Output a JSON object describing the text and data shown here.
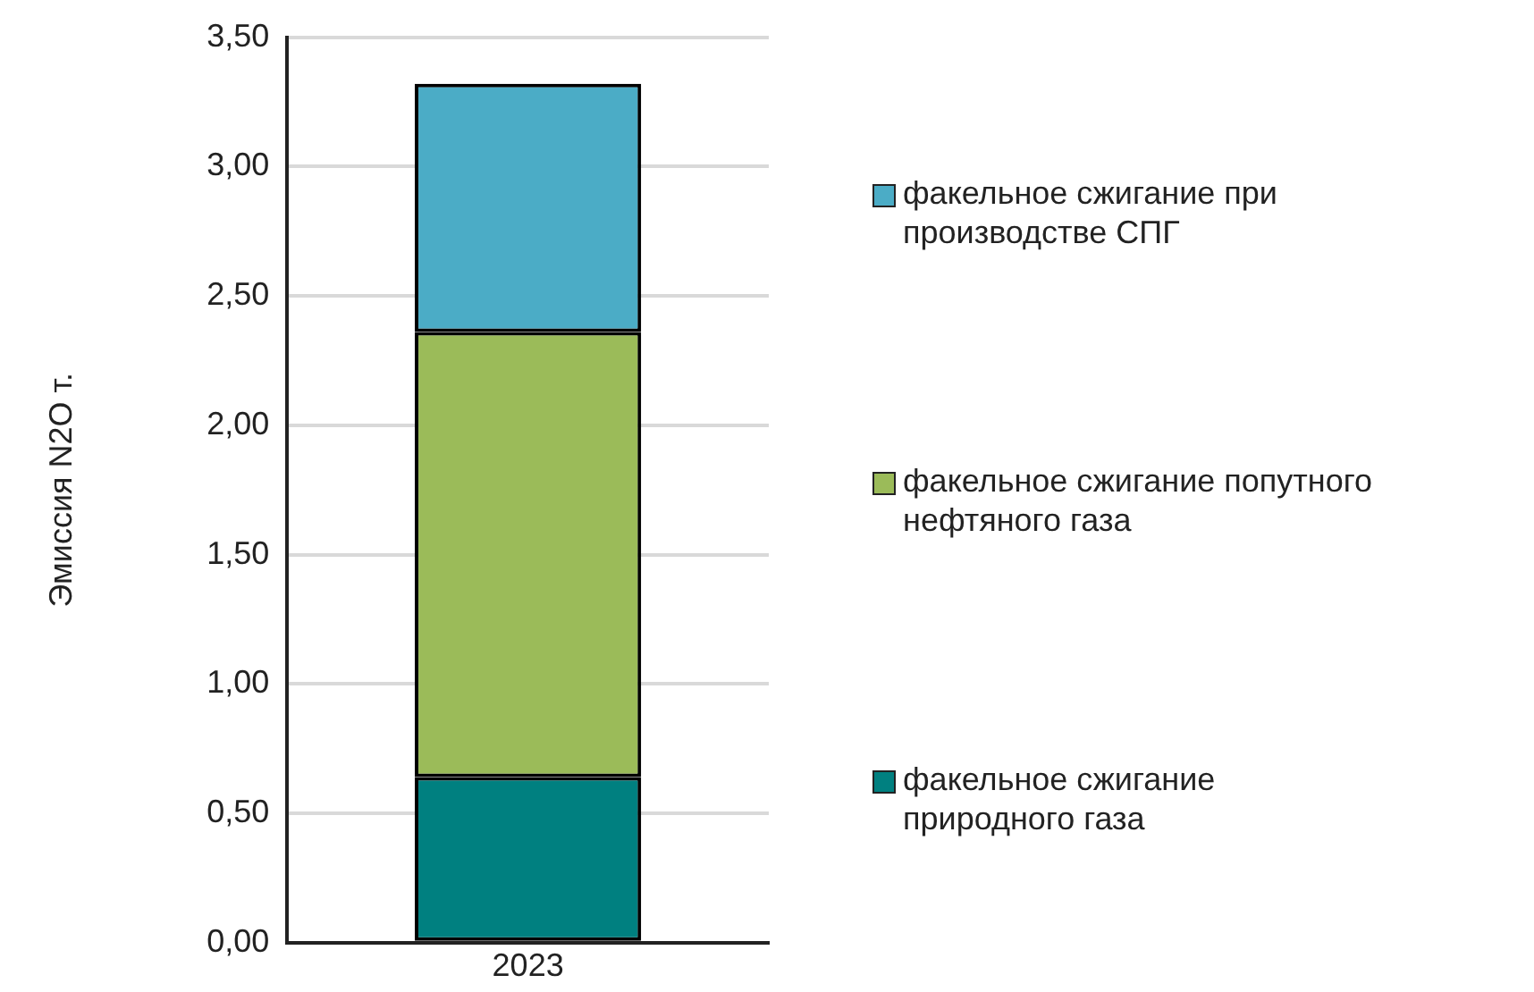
{
  "chart_data": {
    "type": "bar",
    "stacked": true,
    "ylabel": "Эмиссия N2O т.",
    "categories": [
      "2023"
    ],
    "series": [
      {
        "name": "факельное сжигание природного газа",
        "color": "#008080",
        "values": [
          0.64
        ]
      },
      {
        "name": "факельное сжигание попутного нефтяного газа",
        "color": "#9bbb59",
        "values": [
          1.72
        ]
      },
      {
        "name": "факельное сжигание при производстве СПГ",
        "color": "#4bacc6",
        "values": [
          0.96
        ]
      }
    ],
    "ylim": [
      0,
      3.5
    ],
    "yticks": [
      {
        "value": 0,
        "label": "0,00"
      },
      {
        "value": 0.5,
        "label": "0,50"
      },
      {
        "value": 1,
        "label": "1,00"
      },
      {
        "value": 1.5,
        "label": "1,50"
      },
      {
        "value": 2,
        "label": "2,00"
      },
      {
        "value": 2.5,
        "label": "2,50"
      },
      {
        "value": 3,
        "label": "3,00"
      },
      {
        "value": 3.5,
        "label": "3,50"
      }
    ],
    "grid": "y",
    "legend": "right"
  }
}
